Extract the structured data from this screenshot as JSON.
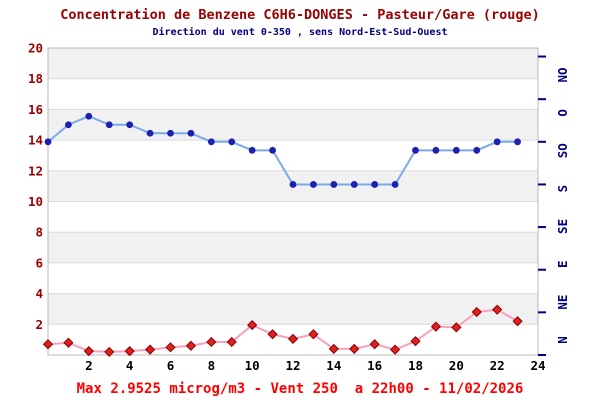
{
  "header": {
    "title": "Concentration de Benzene C6H6-DONGES - Pasteur/Gare (rouge)",
    "subtitle": "Direction du vent 0-350 , sens Nord-Est-Sud-Ouest"
  },
  "footer": {
    "caption": "Max 2.9525 microg/m3 - Vent 250  a 22h00 - 11/02/2026",
    "max_value_microg_m3": 2.9525,
    "wind_at_max_degrees": 250,
    "max_time": "22h00",
    "date": "11/02/2026"
  },
  "colors": {
    "title": "#990000",
    "subtitle": "#000080",
    "caption": "#ff0000",
    "left_axis_labels": "#990000",
    "right_axis_labels": "#000080",
    "x_axis_labels": "#000000",
    "band_gray": "#f1f1f1",
    "gridline": "#dadada",
    "plot_border": "#b8b8b8",
    "wind_line": "#7aaae8",
    "wind_marker": "#2020b0",
    "benzene_line": "#f9a0bc",
    "benzene_marker_fill": "#dd2020",
    "benzene_marker_edge": "#8b0000"
  },
  "chart_data": {
    "type": "line",
    "title": "Concentration de Benzene C6H6-DONGES - Pasteur/Gare (rouge)",
    "subtitle": "Direction du vent 0-350 , sens Nord-Est-Sud-Ouest",
    "x_hours": [
      0,
      1,
      2,
      3,
      4,
      5,
      6,
      7,
      8,
      9,
      10,
      11,
      12,
      13,
      14,
      15,
      16,
      17,
      18,
      19,
      20,
      21,
      22,
      23
    ],
    "xlim": [
      0,
      24
    ],
    "ylim_left": [
      0,
      20
    ],
    "x_tick_labels": [
      "2",
      "4",
      "6",
      "8",
      "10",
      "12",
      "14",
      "16",
      "18",
      "20",
      "22",
      "24"
    ],
    "x_tick_values": [
      2,
      4,
      6,
      8,
      10,
      12,
      14,
      16,
      18,
      20,
      22,
      24
    ],
    "y_tick_labels_left": [
      "2",
      "4",
      "6",
      "8",
      "10",
      "12",
      "14",
      "16",
      "18",
      "20"
    ],
    "y_tick_values_left": [
      2,
      4,
      6,
      8,
      10,
      12,
      14,
      16,
      18,
      20
    ],
    "right_axis_labels_bottom_to_top": [
      "N",
      "NE",
      "E",
      "SE",
      "S",
      "SO",
      "O",
      "NO"
    ],
    "right_axis_tick_degrees": [
      0,
      50,
      100,
      150,
      200,
      250,
      300,
      350
    ],
    "degrees_per_axis_unit": 18,
    "grid": "horizontal-bands",
    "legend": "none",
    "series": [
      {
        "name": "Direction du vent (degres)",
        "marker": "circle",
        "values_degrees": [
          250,
          270,
          280,
          270,
          270,
          260,
          260,
          260,
          250,
          250,
          240,
          240,
          200,
          200,
          200,
          200,
          200,
          200,
          240,
          240,
          240,
          240,
          250,
          250
        ]
      },
      {
        "name": "Concentration de Benzene (microg/m3)",
        "marker": "diamond",
        "values": [
          0.7,
          0.8,
          0.25,
          0.2,
          0.25,
          0.35,
          0.5,
          0.6,
          0.85,
          0.85,
          1.95,
          1.35,
          1.05,
          1.35,
          0.4,
          0.4,
          0.7,
          0.35,
          0.9,
          1.85,
          1.8,
          2.8,
          2.9525,
          2.2
        ]
      }
    ]
  }
}
